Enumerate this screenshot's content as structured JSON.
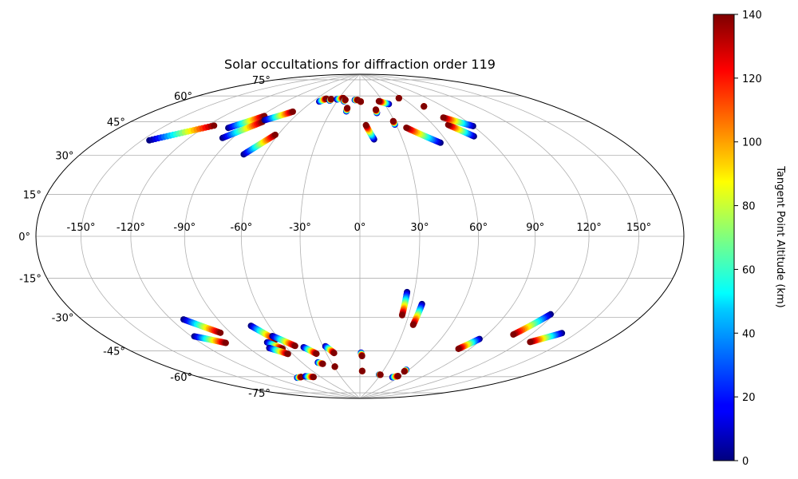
{
  "chart_data": {
    "type": "scatter",
    "projection": "hammer",
    "title": "Solar occultations for diffraction order 119",
    "xlabel": "",
    "ylabel": "",
    "longitude_ticks": [
      "-150°",
      "-120°",
      "-90°",
      "-60°",
      "-30°",
      "0°",
      "30°",
      "60°",
      "90°",
      "120°",
      "150°"
    ],
    "longitude_tick_values": [
      -150,
      -120,
      -90,
      -60,
      -30,
      0,
      30,
      60,
      90,
      120,
      150
    ],
    "latitude_ticks": [
      "75°",
      "60°",
      "45°",
      "30°",
      "15°",
      "0°",
      "-15°",
      "-30°",
      "-45°",
      "-60°",
      "-75°"
    ],
    "latitude_tick_values": [
      75,
      60,
      45,
      30,
      15,
      0,
      -15,
      -30,
      -45,
      -60,
      -75
    ],
    "grid": true,
    "colorbar": {
      "label": "Tangent Point Altitude (km)",
      "colormap": "jet",
      "range": [
        0,
        140
      ],
      "ticks": [
        "0",
        "20",
        "40",
        "60",
        "80",
        "100",
        "120",
        "140"
      ],
      "tick_values": [
        0,
        20,
        40,
        60,
        80,
        100,
        120,
        140
      ]
    },
    "tracks": [
      {
        "lon0": -145,
        "lat0": 41,
        "lon1": -115,
        "lat1": 52
      },
      {
        "lon0": -102,
        "lat0": 52,
        "lon1": -87,
        "lat1": 60
      },
      {
        "lon0": -97,
        "lat0": 47,
        "lon1": -82,
        "lat1": 57
      },
      {
        "lon0": -82,
        "lat0": 58,
        "lon1": -67,
        "lat1": 64
      },
      {
        "lon0": -73,
        "lat0": 40,
        "lon1": -62,
        "lat1": 51
      },
      {
        "lon0": -52,
        "lat0": 71,
        "lon1": -47,
        "lat1": 73
      },
      {
        "lon0": -40,
        "lat0": 72,
        "lon1": -40,
        "lat1": 73
      },
      {
        "lon0": -32,
        "lat0": 73,
        "lon1": -24,
        "lat1": 74
      },
      {
        "lon0": -21,
        "lat0": 72,
        "lon1": -20,
        "lat1": 73
      },
      {
        "lon0": -14,
        "lat0": 66,
        "lon1": -14,
        "lat1": 68
      },
      {
        "lon0": -7,
        "lat0": 73,
        "lon1": -3,
        "lat1": 73
      },
      {
        "lon0": 1,
        "lat0": 72,
        "lon1": 1,
        "lat1": 72
      },
      {
        "lon0": 10,
        "lat0": 50,
        "lon1": 5,
        "lat1": 58
      },
      {
        "lon0": 17,
        "lat0": 65,
        "lon1": 17,
        "lat1": 67
      },
      {
        "lon0": 29,
        "lat0": 58,
        "lon1": 29,
        "lat1": 60
      },
      {
        "lon0": 35,
        "lat0": 70,
        "lon1": 25,
        "lat1": 72
      },
      {
        "lon0": 55,
        "lat0": 47,
        "lon1": 37,
        "lat1": 56
      },
      {
        "lon0": 82,
        "lat0": 49,
        "lon1": 72,
        "lat1": 56
      },
      {
        "lon0": 90,
        "lat0": 54,
        "lon1": 75,
        "lat1": 60
      },
      {
        "lon0": 71,
        "lat0": 67,
        "lon1": 71,
        "lat1": 67
      },
      {
        "lon0": 55,
        "lat0": 73,
        "lon1": 55,
        "lat1": 73
      },
      {
        "lon0": -112,
        "lat0": -38,
        "lon1": -97,
        "lat1": -46
      },
      {
        "lon0": -118,
        "lat0": -46,
        "lon1": -102,
        "lat1": -51
      },
      {
        "lon0": -72,
        "lat0": -44,
        "lon1": -63,
        "lat1": -52
      },
      {
        "lon0": -63,
        "lat0": -50,
        "lon1": -52,
        "lat1": -56
      },
      {
        "lon0": -71,
        "lat0": -53,
        "lon1": -64,
        "lat1": -57
      },
      {
        "lon0": -74,
        "lat0": -56,
        "lon1": -64,
        "lat1": -60
      },
      {
        "lon0": -46,
        "lat0": -57,
        "lon1": -39,
        "lat1": -61
      },
      {
        "lon0": -28,
        "lat0": -57,
        "lon1": -23,
        "lat1": -61
      },
      {
        "lon0": -44,
        "lat0": -66,
        "lon1": -40,
        "lat1": -67
      },
      {
        "lon0": -29,
        "lat0": -69,
        "lon1": -29,
        "lat1": -69
      },
      {
        "lon0": 1,
        "lat0": -61,
        "lon1": 2,
        "lat1": -63
      },
      {
        "lon0": 26,
        "lat0": -28,
        "lon1": 26,
        "lat1": -40
      },
      {
        "lon0": 36,
        "lat0": -34,
        "lon1": 35,
        "lat1": -45
      },
      {
        "lon0": 88,
        "lat0": -50,
        "lon1": 81,
        "lat1": -56
      },
      {
        "lon0": 118,
        "lat0": -35,
        "lon1": 108,
        "lat1": -46
      },
      {
        "lon0": 140,
        "lat0": -42,
        "lon1": 127,
        "lat1": -48
      },
      {
        "lon0": -93,
        "lat0": -73,
        "lon1": -86,
        "lat1": -73
      },
      {
        "lon0": -79,
        "lat0": -73,
        "lon1": -70,
        "lat1": -74
      },
      {
        "lon0": 3,
        "lat0": -72,
        "lon1": 3,
        "lat1": -72
      },
      {
        "lon0": 28,
        "lat0": -74,
        "lon1": 30,
        "lat1": -74
      },
      {
        "lon0": 51,
        "lat0": -75,
        "lon1": 57,
        "lat1": -74
      },
      {
        "lon0": 57,
        "lat0": -70,
        "lon1": 57,
        "lat1": -71
      }
    ]
  }
}
